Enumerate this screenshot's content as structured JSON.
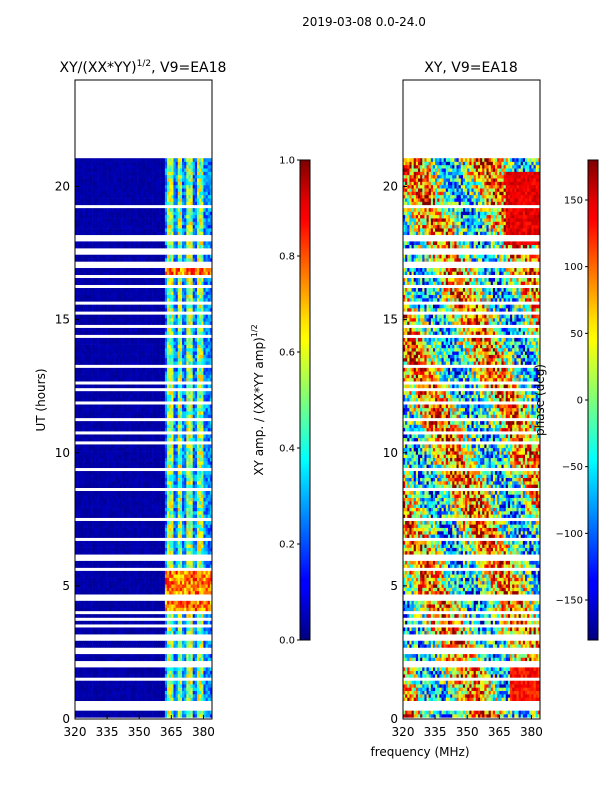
{
  "figure_title": "2019-03-08 0.0-24.0",
  "shared_xlabel": "frequency (MHz)",
  "chart_data": [
    {
      "type": "heatmap",
      "title_main": "XY/(XX*YY)",
      "title_sup": "1/2",
      "title_tail": ", V9=EA18",
      "ylabel": "UT (hours)",
      "xlim": [
        320,
        384
      ],
      "ylim": [
        0,
        24
      ],
      "xticks": [
        320,
        335,
        350,
        365,
        380
      ],
      "yticks": [
        0,
        5,
        10,
        15,
        20
      ],
      "colorbar": {
        "label_main": "XY amp. / (XX*YY amp)",
        "label_sup": "1/2",
        "range": [
          0.0,
          1.0
        ],
        "ticks": [
          "0.0",
          "0.2",
          "0.4",
          "0.6",
          "0.8",
          "1.0"
        ],
        "tick_values": [
          0.0,
          0.2,
          0.4,
          0.6,
          0.8,
          1.0
        ],
        "colormap": "jet"
      },
      "data_extent_ut": [
        0.0,
        21.0
      ]
    },
    {
      "type": "heatmap",
      "title": "XY, V9=EA18",
      "xlim": [
        320,
        384
      ],
      "ylim": [
        0,
        24
      ],
      "xticks": [
        320,
        335,
        350,
        365,
        380
      ],
      "yticks": [
        0,
        5,
        10,
        15,
        20
      ],
      "colorbar": {
        "label": "phase (deg)",
        "range": [
          -180,
          180
        ],
        "ticks": [
          "150",
          "100",
          "50",
          "0",
          "−50",
          "−100",
          "−150"
        ],
        "tick_values": [
          150,
          100,
          50,
          0,
          -50,
          -100,
          -150
        ],
        "colormap": "jet"
      },
      "data_extent_ut": [
        0.0,
        21.0
      ]
    }
  ]
}
